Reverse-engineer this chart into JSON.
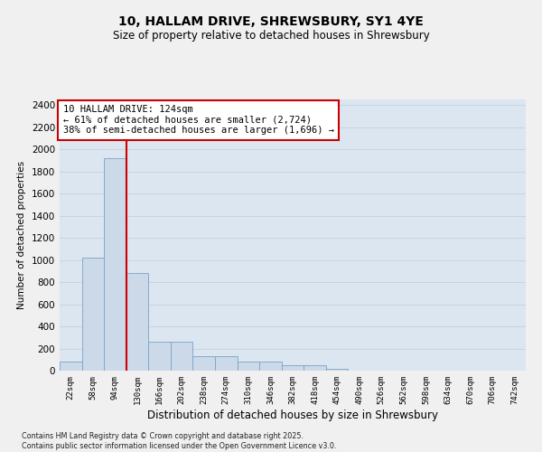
{
  "title_line1": "10, HALLAM DRIVE, SHREWSBURY, SY1 4YE",
  "title_line2": "Size of property relative to detached houses in Shrewsbury",
  "xlabel": "Distribution of detached houses by size in Shrewsbury",
  "ylabel": "Number of detached properties",
  "categories": [
    "22sqm",
    "58sqm",
    "94sqm",
    "130sqm",
    "166sqm",
    "202sqm",
    "238sqm",
    "274sqm",
    "310sqm",
    "346sqm",
    "382sqm",
    "418sqm",
    "454sqm",
    "490sqm",
    "526sqm",
    "562sqm",
    "598sqm",
    "634sqm",
    "670sqm",
    "706sqm",
    "742sqm"
  ],
  "values": [
    80,
    1020,
    1920,
    880,
    265,
    260,
    130,
    130,
    85,
    85,
    50,
    50,
    15,
    0,
    0,
    0,
    0,
    0,
    0,
    0,
    0
  ],
  "bar_color": "#ccd9e8",
  "bar_edge_color": "#7ba3c8",
  "vline_color": "#cc0000",
  "vline_x": 2.5,
  "annotation_text": "10 HALLAM DRIVE: 124sqm\n← 61% of detached houses are smaller (2,724)\n38% of semi-detached houses are larger (1,696) →",
  "annotation_box_facecolor": "#ffffff",
  "annotation_box_edgecolor": "#cc0000",
  "ylim": [
    0,
    2450
  ],
  "yticks": [
    0,
    200,
    400,
    600,
    800,
    1000,
    1200,
    1400,
    1600,
    1800,
    2000,
    2200,
    2400
  ],
  "grid_color": "#c8d4e0",
  "background_color": "#dce6f0",
  "fig_facecolor": "#f0f0f0",
  "footer_line1": "Contains HM Land Registry data © Crown copyright and database right 2025.",
  "footer_line2": "Contains public sector information licensed under the Open Government Licence v3.0."
}
